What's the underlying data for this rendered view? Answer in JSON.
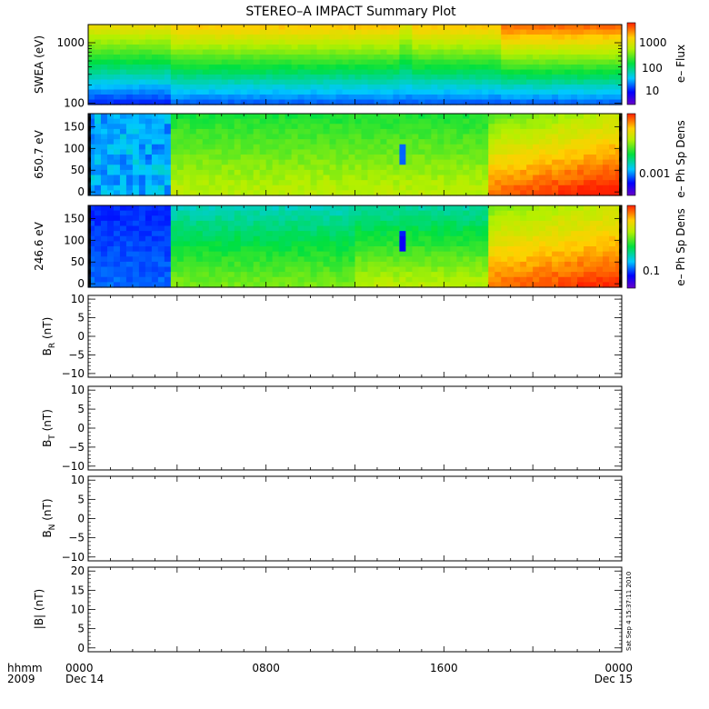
{
  "title": "STEREO–A IMPACT Summary Plot",
  "timestamp": "Sat Sep  4 15:37:11 2010",
  "time_axis": {
    "label_top": "hhmm",
    "label_bottom": "2009",
    "ticks": [
      {
        "value": 0,
        "top": "0000",
        "bottom": "Dec 14"
      },
      {
        "value": 8,
        "top": "0800",
        "bottom": ""
      },
      {
        "value": 16,
        "top": "1600",
        "bottom": ""
      },
      {
        "value": 24,
        "top": "0000",
        "bottom": "Dec 15"
      }
    ]
  },
  "chart_data": [
    {
      "type": "heatmap",
      "id": "swea",
      "ylabel": "SWEA (eV)",
      "yscale": "log",
      "ylim": [
        95,
        2000
      ],
      "yticks": [
        {
          "value": 100,
          "label": "100"
        },
        {
          "value": 1000,
          "label": "1000"
        }
      ],
      "xlim": [
        0,
        24
      ],
      "colorbar_label": "e– Flux",
      "colorbar_ticks": [
        "1000",
        "100",
        "10"
      ]
    },
    {
      "type": "heatmap",
      "id": "pad650",
      "ylabel": "650.7 eV",
      "ylim": [
        -8,
        180
      ],
      "yticks": [
        "0",
        "50",
        "100",
        "150"
      ],
      "xlim": [
        0,
        24
      ],
      "colorbar_label": "e– Ph Sp Dens",
      "colorbar_ticks": [
        "0.001"
      ]
    },
    {
      "type": "heatmap",
      "id": "pad246",
      "ylabel": "246.6 eV",
      "ylim": [
        -8,
        180
      ],
      "yticks": [
        "0",
        "50",
        "100",
        "150"
      ],
      "xlim": [
        0,
        24
      ],
      "colorbar_label": "e– Ph Sp Dens",
      "colorbar_ticks": [
        "0.1"
      ]
    },
    {
      "type": "line",
      "id": "br",
      "ylabel_main": "B",
      "ylabel_sub": "R",
      "ylabel_unit": " (nT)",
      "ylim": [
        -11,
        11
      ],
      "yticks": [
        "−10",
        "−5",
        "0",
        "5",
        "10"
      ],
      "xlim": [
        0,
        24
      ],
      "series": []
    },
    {
      "type": "line",
      "id": "bt",
      "ylabel_main": "B",
      "ylabel_sub": "T",
      "ylabel_unit": " (nT)",
      "ylim": [
        -11,
        11
      ],
      "yticks": [
        "−10",
        "−5",
        "0",
        "5",
        "10"
      ],
      "xlim": [
        0,
        24
      ],
      "series": []
    },
    {
      "type": "line",
      "id": "bn",
      "ylabel_main": "B",
      "ylabel_sub": "N",
      "ylabel_unit": " (nT)",
      "ylim": [
        -11,
        11
      ],
      "yticks": [
        "−10",
        "−5",
        "0",
        "5",
        "10"
      ],
      "xlim": [
        0,
        24
      ],
      "series": []
    },
    {
      "type": "line",
      "id": "bmag",
      "ylabel": "|B| (nT)",
      "ylim": [
        -1,
        21
      ],
      "yticks": [
        "0",
        "5",
        "10",
        "15",
        "20"
      ],
      "xlim": [
        0,
        24
      ],
      "series": []
    }
  ]
}
